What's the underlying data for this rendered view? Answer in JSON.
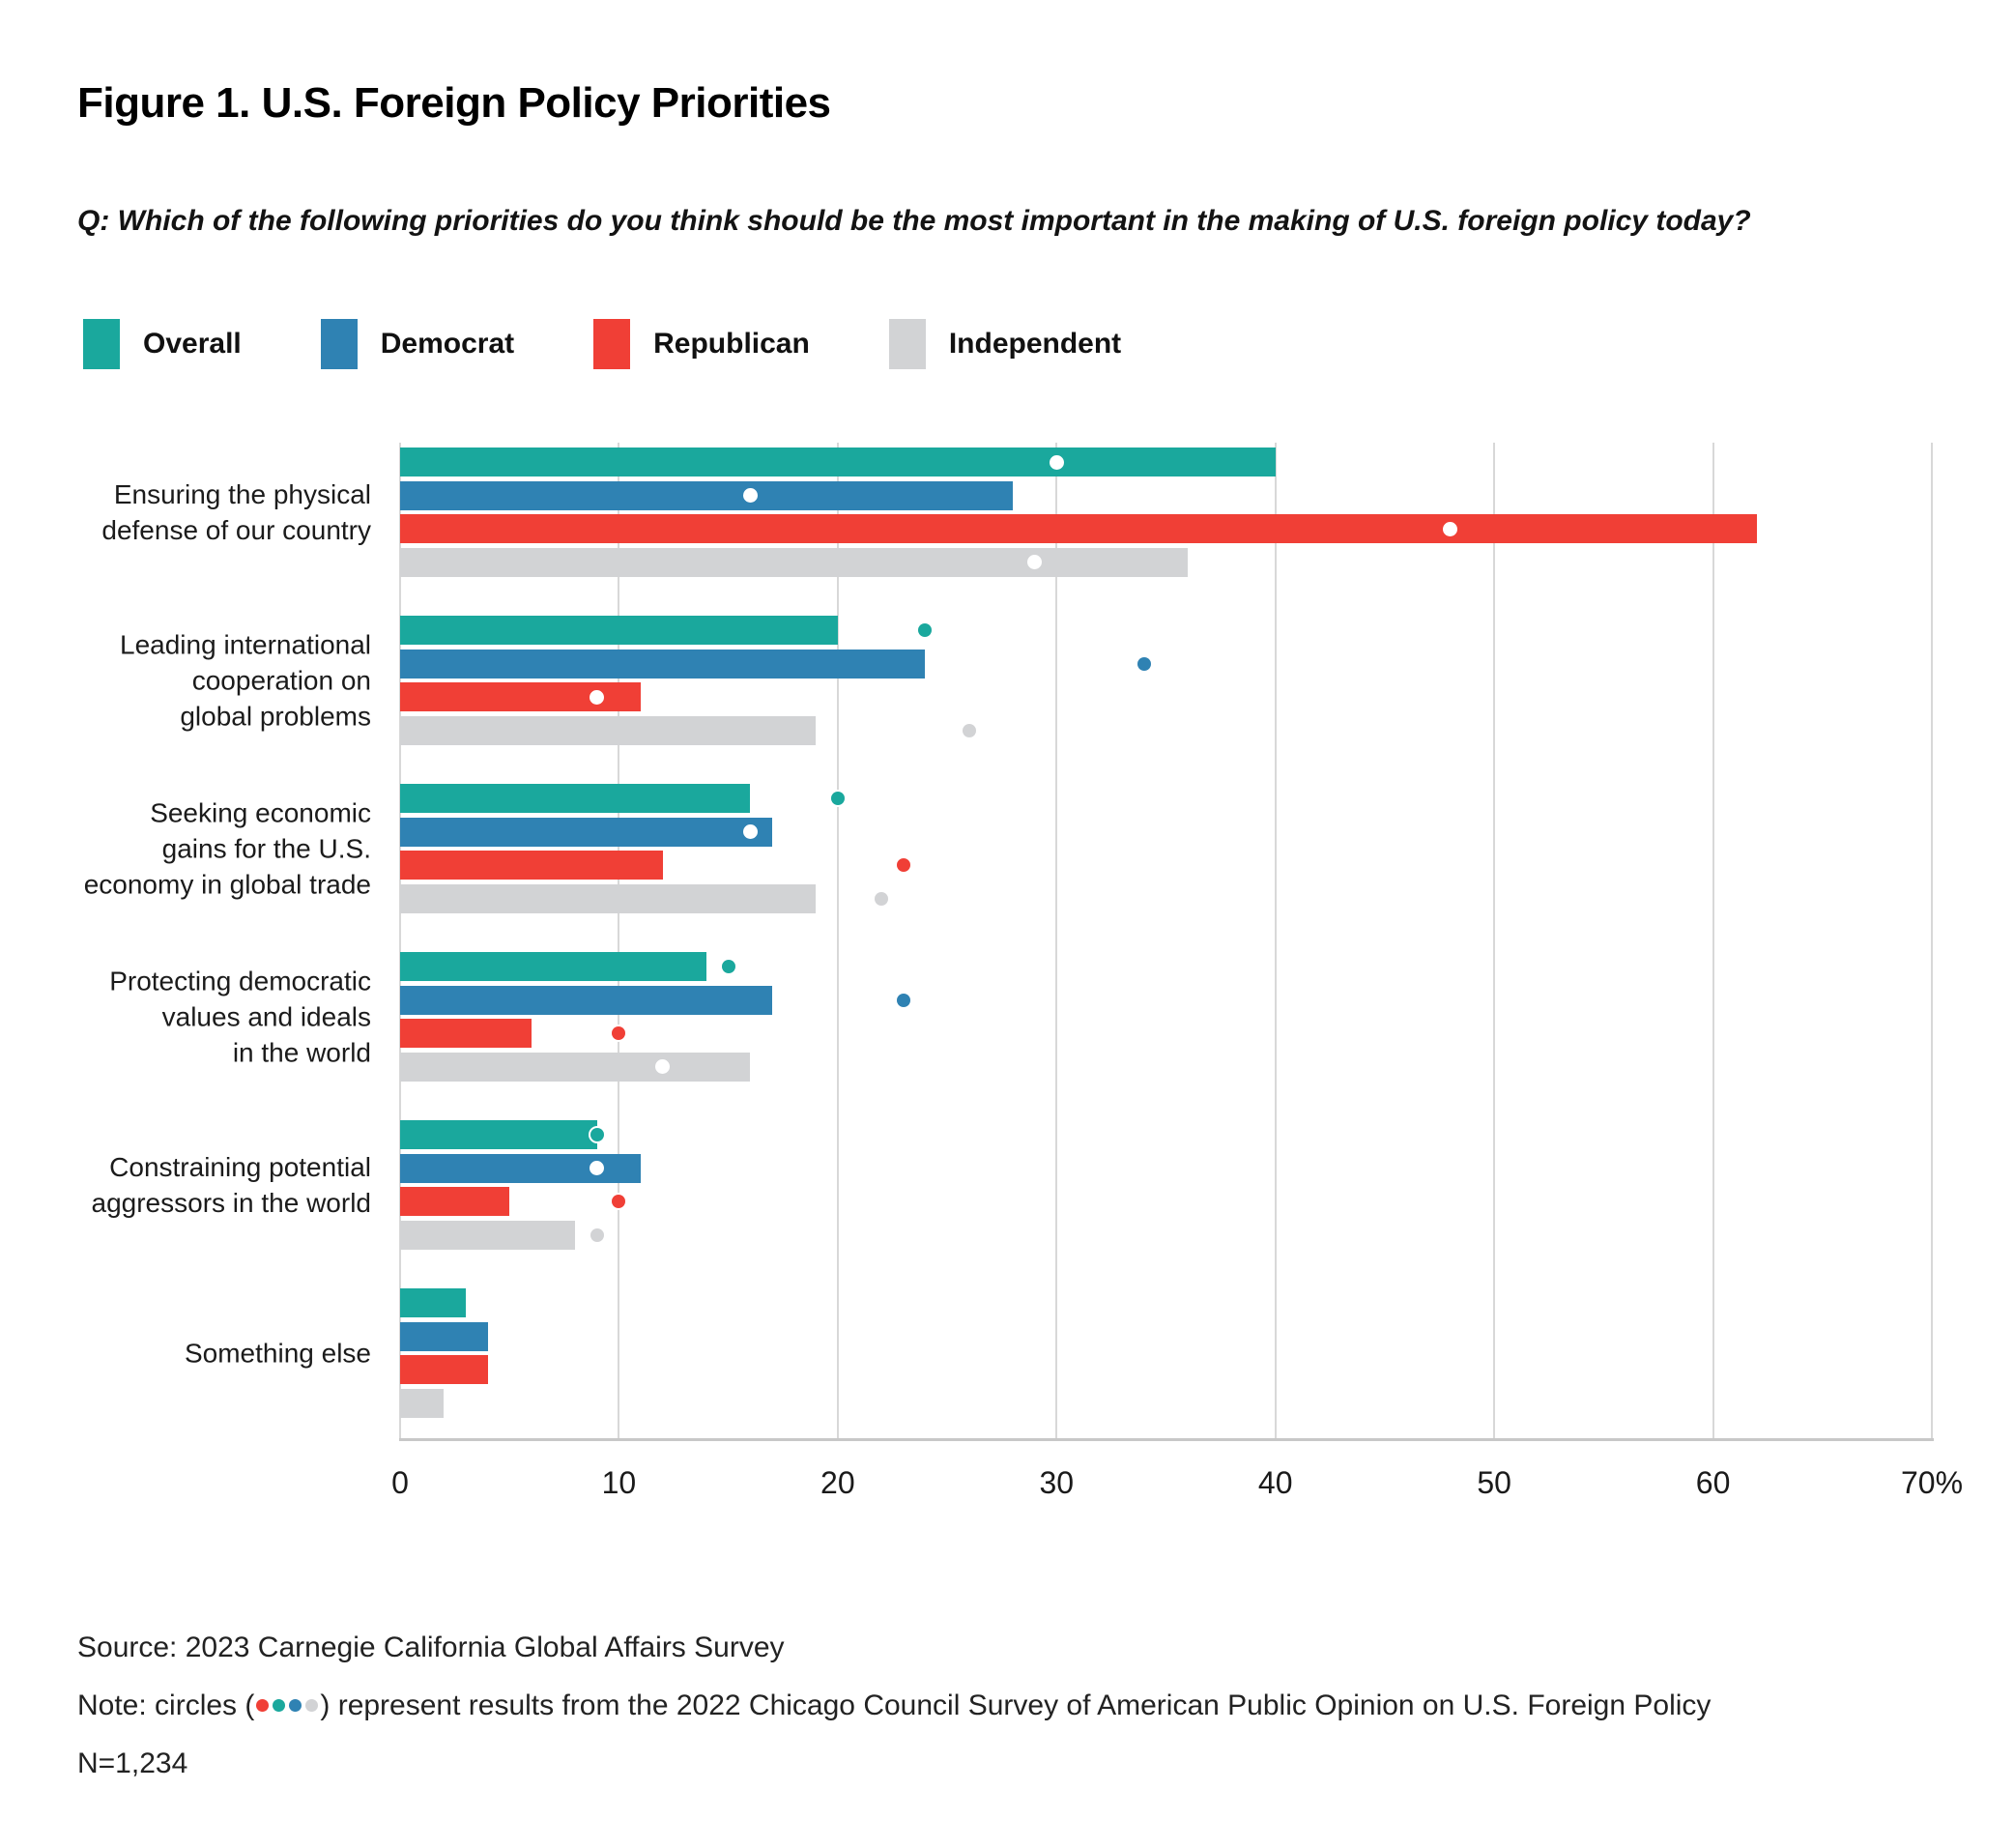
{
  "figure": {
    "title": "Figure 1. U.S. Foreign Policy Priorities",
    "question": "Q: Which of the following priorities do you think should be the most important in the making of U.S. foreign policy today?"
  },
  "legend": [
    {
      "label": "Overall",
      "color": "#1AA89D"
    },
    {
      "label": "Democrat",
      "color": "#2F82B3"
    },
    {
      "label": "Republican",
      "color": "#F03F36"
    },
    {
      "label": "Independent",
      "color": "#D2D3D5"
    }
  ],
  "chart_data": {
    "type": "bar",
    "orientation": "horizontal",
    "title": "Figure 1. U.S. Foreign Policy Priorities",
    "xlim": [
      0,
      70
    ],
    "xticks": [
      0,
      10,
      20,
      30,
      40,
      50,
      60,
      70
    ],
    "xtick_labels": [
      "0",
      "10",
      "20",
      "30",
      "40",
      "50",
      "60",
      "70%"
    ],
    "grid": true,
    "legend_position": "top",
    "dot_meaning": "circles represent results from the 2022 Chicago Council Survey of American Public Opinion on U.S. Foreign Policy",
    "categories": [
      {
        "label_lines": [
          "Ensuring the physical",
          "defense of our country"
        ]
      },
      {
        "label_lines": [
          "Leading international",
          "cooperation on",
          "global problems"
        ]
      },
      {
        "label_lines": [
          "Seeking economic",
          "gains for the U.S.",
          "economy in global trade"
        ]
      },
      {
        "label_lines": [
          "Protecting democratic",
          "values and ideals",
          "in the world"
        ]
      },
      {
        "label_lines": [
          "Constraining potential",
          "aggressors in the world"
        ]
      },
      {
        "label_lines": [
          "Something else"
        ]
      }
    ],
    "series": [
      {
        "name": "Overall",
        "color": "#1AA89D",
        "values": [
          40,
          20,
          16,
          14,
          9,
          3
        ],
        "dots_2022": [
          30,
          24,
          20,
          15,
          9,
          null
        ],
        "dot_styles": [
          "white",
          "series",
          "series",
          "series",
          "series",
          null
        ]
      },
      {
        "name": "Democrat",
        "color": "#2F82B3",
        "values": [
          28,
          24,
          17,
          17,
          11,
          4
        ],
        "dots_2022": [
          16,
          34,
          16,
          23,
          9,
          null
        ],
        "dot_styles": [
          "white",
          "series",
          "white",
          "series",
          "white",
          null
        ]
      },
      {
        "name": "Republican",
        "color": "#F03F36",
        "values": [
          62,
          11,
          12,
          6,
          5,
          4
        ],
        "dots_2022": [
          48,
          9,
          23,
          10,
          10,
          null
        ],
        "dot_styles": [
          "white",
          "white",
          "series",
          "series",
          "series",
          null
        ]
      },
      {
        "name": "Independent",
        "color": "#D2D3D5",
        "values": [
          36,
          19,
          19,
          16,
          8,
          2
        ],
        "dots_2022": [
          29,
          26,
          22,
          12,
          9,
          null
        ],
        "dot_styles": [
          "white",
          "series",
          "series",
          "white",
          "series",
          null
        ]
      }
    ]
  },
  "footer": {
    "source": "Source: 2023 Carnegie California Global Affairs Survey",
    "note_prefix": "Note: circles (",
    "note_suffix": ") represent results from the 2022 Chicago Council Survey of American Public Opinion on U.S. Foreign Policy",
    "note_dot_colors": [
      "#F03F36",
      "#1AA89D",
      "#2F82B3",
      "#D2D3D5"
    ],
    "sample": "N=1,234"
  }
}
